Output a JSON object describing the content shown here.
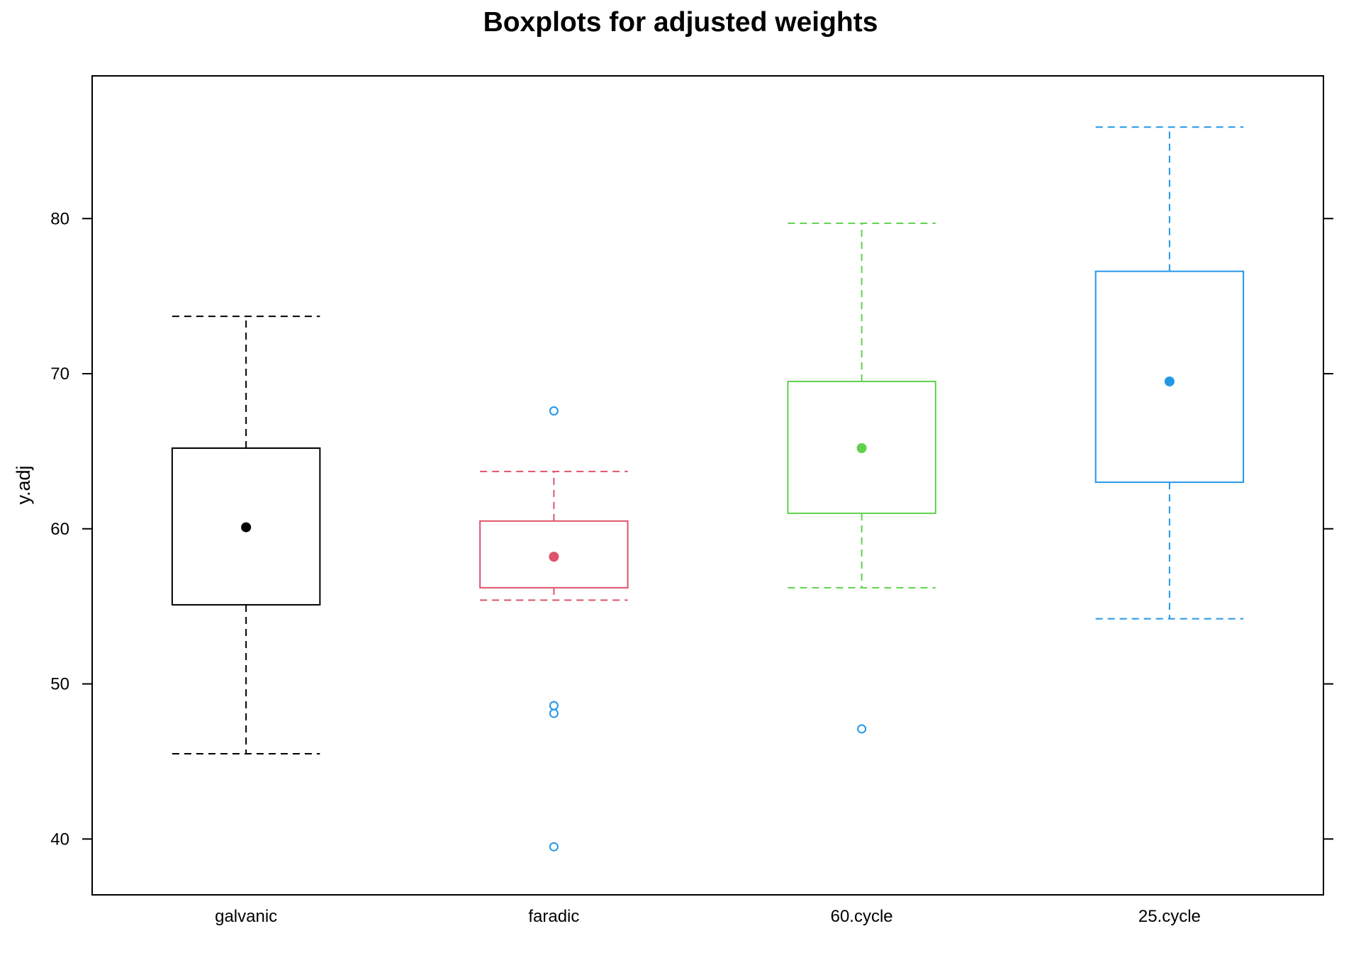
{
  "chart_data": {
    "type": "box",
    "title": "Boxplots for adjusted weights",
    "xlabel": "",
    "ylabel": "y.adj",
    "ylim": [
      36.4,
      89.2
    ],
    "y_ticks": [
      40,
      50,
      60,
      70,
      80
    ],
    "grid": false,
    "categories": [
      "galvanic",
      "faradic",
      "60.cycle",
      "25.cycle"
    ],
    "colors": [
      "#000000",
      "#DF536B",
      "#61D04F",
      "#2297E6"
    ],
    "outlier_color": "#2297E6",
    "boxes": [
      {
        "category": "galvanic",
        "whisker_low": 45.5,
        "q1": 55.1,
        "median": 60.1,
        "q3": 65.2,
        "whisker_high": 73.7,
        "outliers": []
      },
      {
        "category": "faradic",
        "whisker_low": 55.4,
        "q1": 56.2,
        "median": 58.2,
        "q3": 60.5,
        "whisker_high": 63.7,
        "outliers": [
          67.6,
          48.6,
          48.1,
          39.5
        ]
      },
      {
        "category": "60.cycle",
        "whisker_low": 56.2,
        "q1": 61.0,
        "median": 65.2,
        "q3": 69.5,
        "whisker_high": 79.7,
        "outliers": [
          47.1
        ]
      },
      {
        "category": "25.cycle",
        "whisker_low": 54.2,
        "q1": 63.0,
        "median": 69.5,
        "q3": 76.6,
        "whisker_high": 85.9,
        "outliers": []
      }
    ]
  }
}
